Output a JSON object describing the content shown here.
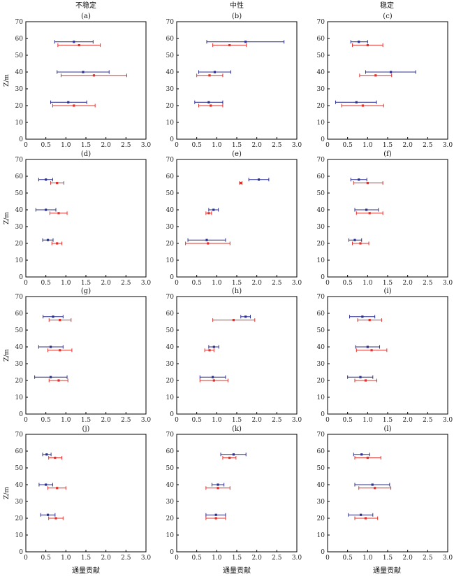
{
  "figure": {
    "column_titles": [
      "不稳定",
      "中性",
      "稳定"
    ],
    "ylabel": "Z/m",
    "xlabel": "通量贡献",
    "blue_color": "#2b2f8f",
    "red_color": "#e0302a",
    "frame_color": "#000000"
  },
  "chart_data": [
    {
      "type": "errorbar",
      "label": "(a)",
      "xlim": [
        0,
        3.0
      ],
      "ylim": [
        0,
        70
      ],
      "xticks": [
        "0",
        "0.5",
        "1.0",
        "1.5",
        "2.0",
        "2.5",
        "3.0"
      ],
      "yticks": [
        "0",
        "10",
        "20",
        "30",
        "40",
        "50",
        "60",
        "70"
      ],
      "series": [
        {
          "color": "blue",
          "points": [
            {
              "y": 58,
              "x": 1.2,
              "xmin": 0.72,
              "xmax": 1.68
            },
            {
              "y": 40,
              "x": 1.43,
              "xmin": 0.78,
              "xmax": 2.08
            },
            {
              "y": 22,
              "x": 1.06,
              "xmin": 0.62,
              "xmax": 1.52
            }
          ]
        },
        {
          "color": "red",
          "points": [
            {
              "y": 56,
              "x": 1.33,
              "xmin": 0.8,
              "xmax": 1.86
            },
            {
              "y": 38,
              "x": 1.7,
              "xmin": 0.88,
              "xmax": 2.52
            },
            {
              "y": 20,
              "x": 1.2,
              "xmin": 0.67,
              "xmax": 1.73
            }
          ]
        }
      ]
    },
    {
      "type": "errorbar",
      "label": "(b)",
      "xlim": [
        0,
        3.0
      ],
      "ylim": [
        0,
        70
      ],
      "xticks": [
        "0",
        "0.5",
        "1.0",
        "1.5",
        "2.0",
        "2.5",
        "3.0"
      ],
      "yticks": [
        "0",
        "10",
        "20",
        "30",
        "40",
        "50",
        "60",
        "70"
      ],
      "series": [
        {
          "color": "blue",
          "points": [
            {
              "y": 58,
              "x": 1.72,
              "xmin": 0.75,
              "xmax": 2.68
            },
            {
              "y": 40,
              "x": 0.95,
              "xmin": 0.55,
              "xmax": 1.35
            },
            {
              "y": 22,
              "x": 0.8,
              "xmin": 0.45,
              "xmax": 1.15
            }
          ]
        },
        {
          "color": "red",
          "points": [
            {
              "y": 56,
              "x": 1.32,
              "xmin": 0.9,
              "xmax": 1.74
            },
            {
              "y": 38,
              "x": 0.82,
              "xmin": 0.5,
              "xmax": 1.15
            },
            {
              "y": 20,
              "x": 0.85,
              "xmin": 0.55,
              "xmax": 1.15
            }
          ]
        }
      ]
    },
    {
      "type": "errorbar",
      "label": "(c)",
      "xlim": [
        0,
        3.0
      ],
      "ylim": [
        0,
        70
      ],
      "xticks": [
        "0",
        "0.5",
        "1.0",
        "1.5",
        "2.0",
        "2.5",
        "3.0"
      ],
      "yticks": [
        "0",
        "10",
        "20",
        "30",
        "40",
        "50",
        "60",
        "70"
      ],
      "series": [
        {
          "color": "blue",
          "points": [
            {
              "y": 58,
              "x": 0.78,
              "xmin": 0.58,
              "xmax": 1.0
            },
            {
              "y": 40,
              "x": 1.58,
              "xmin": 0.95,
              "xmax": 2.2
            },
            {
              "y": 22,
              "x": 0.72,
              "xmin": 0.2,
              "xmax": 1.22
            }
          ]
        },
        {
          "color": "red",
          "points": [
            {
              "y": 56,
              "x": 1.0,
              "xmin": 0.62,
              "xmax": 1.38
            },
            {
              "y": 38,
              "x": 1.2,
              "xmin": 0.8,
              "xmax": 1.6
            },
            {
              "y": 20,
              "x": 0.88,
              "xmin": 0.35,
              "xmax": 1.4
            }
          ]
        }
      ]
    },
    {
      "type": "errorbar",
      "label": "(d)",
      "xlim": [
        0,
        3.0
      ],
      "ylim": [
        0,
        70
      ],
      "xticks": [
        "0",
        "0.5",
        "1.0",
        "1.5",
        "2.0",
        "2.5",
        "3.0"
      ],
      "yticks": [
        "0",
        "10",
        "20",
        "30",
        "40",
        "50",
        "60",
        "70"
      ],
      "series": [
        {
          "color": "blue",
          "points": [
            {
              "y": 58,
              "x": 0.5,
              "xmin": 0.32,
              "xmax": 0.67
            },
            {
              "y": 40,
              "x": 0.5,
              "xmin": 0.25,
              "xmax": 0.75
            },
            {
              "y": 22,
              "x": 0.55,
              "xmin": 0.42,
              "xmax": 0.68
            }
          ]
        },
        {
          "color": "red",
          "points": [
            {
              "y": 56,
              "x": 0.78,
              "xmin": 0.62,
              "xmax": 0.95
            },
            {
              "y": 38,
              "x": 0.82,
              "xmin": 0.6,
              "xmax": 1.03
            },
            {
              "y": 20,
              "x": 0.78,
              "xmin": 0.65,
              "xmax": 0.9
            }
          ]
        }
      ]
    },
    {
      "type": "errorbar",
      "label": "(e)",
      "xlim": [
        0,
        3.0
      ],
      "ylim": [
        0,
        70
      ],
      "xticks": [
        "0",
        "0.5",
        "1.0",
        "1.5",
        "2.0",
        "2.5",
        "3.0"
      ],
      "yticks": [
        "0",
        "10",
        "20",
        "30",
        "40",
        "50",
        "60",
        "70"
      ],
      "series": [
        {
          "color": "blue",
          "points": [
            {
              "y": 58,
              "x": 2.05,
              "xmin": 1.8,
              "xmax": 2.3
            },
            {
              "y": 40,
              "x": 0.92,
              "xmin": 0.8,
              "xmax": 1.04
            },
            {
              "y": 22,
              "x": 0.75,
              "xmin": 0.28,
              "xmax": 1.22
            }
          ]
        },
        {
          "color": "red",
          "points": [
            {
              "y": 56,
              "x": 1.6,
              "xmin": 1.57,
              "xmax": 1.63
            },
            {
              "y": 38,
              "x": 0.8,
              "xmin": 0.73,
              "xmax": 0.87
            },
            {
              "y": 20,
              "x": 0.78,
              "xmin": 0.22,
              "xmax": 1.33
            }
          ]
        }
      ]
    },
    {
      "type": "errorbar",
      "label": "(f)",
      "xlim": [
        0,
        3.0
      ],
      "ylim": [
        0,
        70
      ],
      "xticks": [
        "0",
        "0.5",
        "1.0",
        "1.5",
        "2.0",
        "2.5",
        "3.0"
      ],
      "yticks": [
        "0",
        "10",
        "20",
        "30",
        "40",
        "50",
        "60",
        "70"
      ],
      "series": [
        {
          "color": "blue",
          "points": [
            {
              "y": 58,
              "x": 0.78,
              "xmin": 0.58,
              "xmax": 0.98
            },
            {
              "y": 40,
              "x": 0.97,
              "xmin": 0.68,
              "xmax": 1.27
            },
            {
              "y": 22,
              "x": 0.68,
              "xmin": 0.53,
              "xmax": 0.85
            }
          ]
        },
        {
          "color": "red",
          "points": [
            {
              "y": 56,
              "x": 1.0,
              "xmin": 0.65,
              "xmax": 1.38
            },
            {
              "y": 38,
              "x": 1.05,
              "xmin": 0.72,
              "xmax": 1.38
            },
            {
              "y": 20,
              "x": 0.82,
              "xmin": 0.62,
              "xmax": 1.03
            }
          ]
        }
      ]
    },
    {
      "type": "errorbar",
      "label": "(g)",
      "xlim": [
        0,
        3.0
      ],
      "ylim": [
        0,
        70
      ],
      "xticks": [
        "0",
        "0.5",
        "1.0",
        "1.5",
        "2.0",
        "2.5",
        "3.0"
      ],
      "yticks": [
        "0",
        "10",
        "20",
        "30",
        "40",
        "50",
        "60",
        "70"
      ],
      "series": [
        {
          "color": "blue",
          "points": [
            {
              "y": 58,
              "x": 0.68,
              "xmin": 0.43,
              "xmax": 0.93
            },
            {
              "y": 40,
              "x": 0.62,
              "xmin": 0.32,
              "xmax": 0.93
            },
            {
              "y": 22,
              "x": 0.62,
              "xmin": 0.22,
              "xmax": 1.03
            }
          ]
        },
        {
          "color": "red",
          "points": [
            {
              "y": 56,
              "x": 0.85,
              "xmin": 0.58,
              "xmax": 1.13
            },
            {
              "y": 38,
              "x": 0.85,
              "xmin": 0.55,
              "xmax": 1.15
            },
            {
              "y": 20,
              "x": 0.82,
              "xmin": 0.58,
              "xmax": 1.05
            }
          ]
        }
      ]
    },
    {
      "type": "errorbar",
      "label": "(h)",
      "xlim": [
        0,
        3.0
      ],
      "ylim": [
        0,
        70
      ],
      "xticks": [
        "0",
        "0.5",
        "1.0",
        "1.5",
        "2.0",
        "2.5",
        "3.0"
      ],
      "yticks": [
        "0",
        "10",
        "20",
        "30",
        "40",
        "50",
        "60",
        "70"
      ],
      "series": [
        {
          "color": "blue",
          "points": [
            {
              "y": 58,
              "x": 1.72,
              "xmin": 1.6,
              "xmax": 1.84
            },
            {
              "y": 40,
              "x": 0.93,
              "xmin": 0.8,
              "xmax": 1.05
            },
            {
              "y": 22,
              "x": 0.9,
              "xmin": 0.58,
              "xmax": 1.22
            }
          ]
        },
        {
          "color": "red",
          "points": [
            {
              "y": 56,
              "x": 1.42,
              "xmin": 0.9,
              "xmax": 1.95
            },
            {
              "y": 38,
              "x": 0.82,
              "xmin": 0.7,
              "xmax": 0.93
            },
            {
              "y": 20,
              "x": 0.93,
              "xmin": 0.58,
              "xmax": 1.28
            }
          ]
        }
      ]
    },
    {
      "type": "errorbar",
      "label": "(i)",
      "xlim": [
        0,
        3.0
      ],
      "ylim": [
        0,
        70
      ],
      "xticks": [
        "0",
        "0.5",
        "1.0",
        "1.5",
        "2.0",
        "2.5",
        "3.0"
      ],
      "yticks": [
        "0",
        "10",
        "20",
        "30",
        "40",
        "50",
        "60",
        "70"
      ],
      "series": [
        {
          "color": "blue",
          "points": [
            {
              "y": 58,
              "x": 0.87,
              "xmin": 0.55,
              "xmax": 1.18
            },
            {
              "y": 40,
              "x": 1.0,
              "xmin": 0.7,
              "xmax": 1.3
            },
            {
              "y": 22,
              "x": 0.82,
              "xmin": 0.5,
              "xmax": 1.13
            }
          ]
        },
        {
          "color": "red",
          "points": [
            {
              "y": 56,
              "x": 1.05,
              "xmin": 0.75,
              "xmax": 1.35
            },
            {
              "y": 38,
              "x": 1.1,
              "xmin": 0.72,
              "xmax": 1.48
            },
            {
              "y": 20,
              "x": 0.95,
              "xmin": 0.68,
              "xmax": 1.23
            }
          ]
        }
      ]
    },
    {
      "type": "errorbar",
      "label": "(j)",
      "xlim": [
        0,
        3.0
      ],
      "ylim": [
        0,
        70
      ],
      "xticks": [
        "0",
        "0.5",
        "1.0",
        "1.5",
        "2.0",
        "2.5",
        "3.0"
      ],
      "yticks": [
        "0",
        "10",
        "20",
        "30",
        "40",
        "50",
        "60",
        "70"
      ],
      "series": [
        {
          "color": "blue",
          "points": [
            {
              "y": 58,
              "x": 0.52,
              "xmin": 0.42,
              "xmax": 0.63
            },
            {
              "y": 40,
              "x": 0.5,
              "xmin": 0.33,
              "xmax": 0.67
            },
            {
              "y": 22,
              "x": 0.55,
              "xmin": 0.37,
              "xmax": 0.73
            }
          ]
        },
        {
          "color": "red",
          "points": [
            {
              "y": 56,
              "x": 0.73,
              "xmin": 0.57,
              "xmax": 0.9
            },
            {
              "y": 38,
              "x": 0.78,
              "xmin": 0.55,
              "xmax": 1.0
            },
            {
              "y": 20,
              "x": 0.75,
              "xmin": 0.57,
              "xmax": 0.93
            }
          ]
        }
      ]
    },
    {
      "type": "errorbar",
      "label": "(k)",
      "xlim": [
        0,
        3.0
      ],
      "ylim": [
        0,
        70
      ],
      "xticks": [
        "0",
        "0.5",
        "1.0",
        "1.5",
        "2.0",
        "2.5",
        "3.0"
      ],
      "yticks": [
        "0",
        "10",
        "20",
        "30",
        "40",
        "50",
        "60",
        "70"
      ],
      "series": [
        {
          "color": "blue",
          "points": [
            {
              "y": 58,
              "x": 1.42,
              "xmin": 1.1,
              "xmax": 1.73
            },
            {
              "y": 40,
              "x": 1.03,
              "xmin": 0.88,
              "xmax": 1.18
            },
            {
              "y": 22,
              "x": 0.98,
              "xmin": 0.73,
              "xmax": 1.22
            }
          ]
        },
        {
          "color": "red",
          "points": [
            {
              "y": 56,
              "x": 1.32,
              "xmin": 1.15,
              "xmax": 1.48
            },
            {
              "y": 38,
              "x": 1.03,
              "xmin": 0.73,
              "xmax": 1.33
            },
            {
              "y": 20,
              "x": 0.98,
              "xmin": 0.73,
              "xmax": 1.22
            }
          ]
        }
      ]
    },
    {
      "type": "errorbar",
      "label": "(l)",
      "xlim": [
        0,
        3.0
      ],
      "ylim": [
        0,
        70
      ],
      "xticks": [
        "0",
        "0.5",
        "1.0",
        "1.5",
        "2.0",
        "2.5",
        "3.0"
      ],
      "yticks": [
        "0",
        "10",
        "20",
        "30",
        "40",
        "50",
        "60",
        "70"
      ],
      "series": [
        {
          "color": "blue",
          "points": [
            {
              "y": 58,
              "x": 0.85,
              "xmin": 0.65,
              "xmax": 1.05
            },
            {
              "y": 40,
              "x": 1.12,
              "xmin": 0.68,
              "xmax": 1.55
            },
            {
              "y": 22,
              "x": 0.83,
              "xmin": 0.52,
              "xmax": 1.13
            }
          ]
        },
        {
          "color": "red",
          "points": [
            {
              "y": 56,
              "x": 1.0,
              "xmin": 0.68,
              "xmax": 1.33
            },
            {
              "y": 38,
              "x": 1.18,
              "xmin": 0.78,
              "xmax": 1.58
            },
            {
              "y": 20,
              "x": 0.95,
              "xmin": 0.68,
              "xmax": 1.25
            }
          ]
        }
      ]
    }
  ]
}
